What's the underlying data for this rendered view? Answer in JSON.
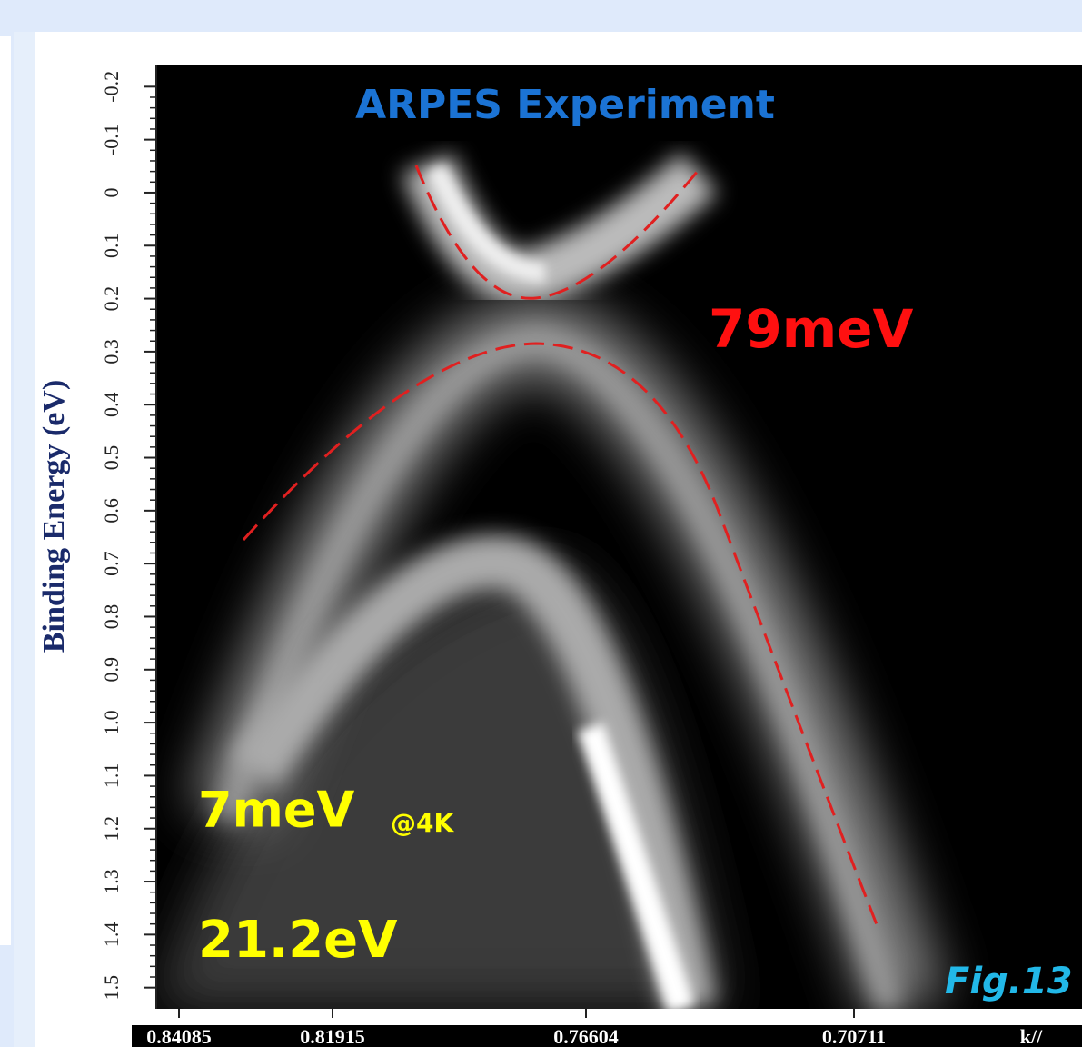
{
  "chart_data": {
    "type": "image",
    "title": "ARPES Experiment",
    "y_label": "Binding Energy (eV)",
    "ylim": [
      -0.24,
      1.54
    ],
    "yticks": [
      -0.2,
      -0.1,
      0,
      0.1,
      0.2,
      0.3,
      0.4,
      0.5,
      0.6,
      0.7,
      0.8,
      0.9,
      {
        "value": 1,
        "label": "1.0"
      },
      1.1,
      1.2,
      1.3,
      1.4,
      1.5
    ],
    "xticks": [
      0.84085,
      0.81915,
      0.76604,
      0.70711
    ],
    "x_label": "k//",
    "annotations": [
      "79meV",
      "7meV",
      "@4K",
      "21.2eV",
      "Fig.13"
    ]
  }
}
